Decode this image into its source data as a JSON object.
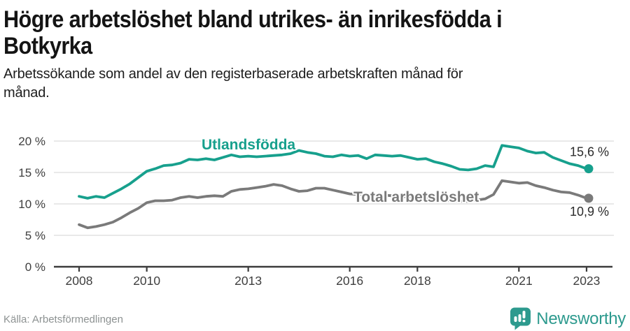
{
  "header": {
    "title": "Högre arbetslöshet bland utrikes- än inrikesfödda i Botkyrka",
    "subtitle": "Arbetssökande som andel av den registerbaserade arbetskraften månad för månad."
  },
  "chart_data": {
    "type": "line",
    "title": "Högre arbetslöshet bland utrikes- än inrikesfödda i Botkyrka",
    "subtitle": "Arbetssökande som andel av den registerbaserade arbetskraften månad för månad.",
    "xlabel": "",
    "ylabel": "",
    "grid": "horizontal",
    "legend_position": "inline-labels",
    "xlim": [
      2007.25,
      2023.8
    ],
    "ylim": [
      0,
      21
    ],
    "yticks": [
      {
        "v": 0,
        "label": "0 %"
      },
      {
        "v": 5,
        "label": "5 %"
      },
      {
        "v": 10,
        "label": "10 %"
      },
      {
        "v": 15,
        "label": "15 %"
      },
      {
        "v": 20,
        "label": "20 %"
      }
    ],
    "xticks": [
      {
        "v": 2008,
        "label": "2008"
      },
      {
        "v": 2010,
        "label": "2010"
      },
      {
        "v": 2013,
        "label": "2013"
      },
      {
        "v": 2016,
        "label": "2016"
      },
      {
        "v": 2018,
        "label": "2018"
      },
      {
        "v": 2021,
        "label": "2021"
      },
      {
        "v": 2023,
        "label": "2023"
      }
    ],
    "series": [
      {
        "name": "Utlandsfödda",
        "color": "#17a08d",
        "end_label": "15,6 %",
        "end_label_position": "above",
        "label_at": [
          2011.62,
          18.67
        ],
        "points": [
          [
            2008.0,
            11.2
          ],
          [
            2008.25,
            10.9
          ],
          [
            2008.5,
            11.2
          ],
          [
            2008.75,
            11.0
          ],
          [
            2009.0,
            11.7
          ],
          [
            2009.25,
            12.4
          ],
          [
            2009.5,
            13.2
          ],
          [
            2009.75,
            14.2
          ],
          [
            2010.0,
            15.2
          ],
          [
            2010.25,
            15.6
          ],
          [
            2010.5,
            16.1
          ],
          [
            2010.75,
            16.2
          ],
          [
            2011.0,
            16.5
          ],
          [
            2011.25,
            17.1
          ],
          [
            2011.5,
            17.0
          ],
          [
            2011.75,
            17.2
          ],
          [
            2012.0,
            17.0
          ],
          [
            2012.25,
            17.4
          ],
          [
            2012.5,
            17.8
          ],
          [
            2012.75,
            17.5
          ],
          [
            2013.0,
            17.6
          ],
          [
            2013.25,
            17.5
          ],
          [
            2013.5,
            17.6
          ],
          [
            2013.75,
            17.7
          ],
          [
            2014.0,
            17.8
          ],
          [
            2014.25,
            18.0
          ],
          [
            2014.5,
            18.5
          ],
          [
            2014.75,
            18.2
          ],
          [
            2015.0,
            18.0
          ],
          [
            2015.25,
            17.6
          ],
          [
            2015.5,
            17.5
          ],
          [
            2015.75,
            17.8
          ],
          [
            2016.0,
            17.6
          ],
          [
            2016.25,
            17.7
          ],
          [
            2016.5,
            17.2
          ],
          [
            2016.75,
            17.8
          ],
          [
            2017.0,
            17.7
          ],
          [
            2017.25,
            17.6
          ],
          [
            2017.5,
            17.7
          ],
          [
            2017.75,
            17.4
          ],
          [
            2018.0,
            17.1
          ],
          [
            2018.25,
            17.2
          ],
          [
            2018.5,
            16.7
          ],
          [
            2018.75,
            16.4
          ],
          [
            2019.0,
            16.0
          ],
          [
            2019.25,
            15.5
          ],
          [
            2019.5,
            15.4
          ],
          [
            2019.75,
            15.6
          ],
          [
            2020.0,
            16.1
          ],
          [
            2020.25,
            15.9
          ],
          [
            2020.5,
            19.3
          ],
          [
            2020.75,
            19.1
          ],
          [
            2021.0,
            18.9
          ],
          [
            2021.25,
            18.4
          ],
          [
            2021.5,
            18.1
          ],
          [
            2021.75,
            18.2
          ],
          [
            2022.0,
            17.4
          ],
          [
            2022.25,
            16.9
          ],
          [
            2022.5,
            16.4
          ],
          [
            2022.75,
            16.1
          ],
          [
            2023.0,
            15.6
          ]
        ]
      },
      {
        "name": "Total arbetslöshet",
        "color": "#7a7a7a",
        "end_label": "10,9 %",
        "end_label_position": "below",
        "label_at": [
          2016.11,
          10.33
        ],
        "points": [
          [
            2008.0,
            6.7
          ],
          [
            2008.25,
            6.2
          ],
          [
            2008.5,
            6.4
          ],
          [
            2008.75,
            6.7
          ],
          [
            2009.0,
            7.1
          ],
          [
            2009.25,
            7.8
          ],
          [
            2009.5,
            8.6
          ],
          [
            2009.75,
            9.3
          ],
          [
            2010.0,
            10.2
          ],
          [
            2010.25,
            10.5
          ],
          [
            2010.5,
            10.5
          ],
          [
            2010.75,
            10.6
          ],
          [
            2011.0,
            11.0
          ],
          [
            2011.25,
            11.2
          ],
          [
            2011.5,
            11.0
          ],
          [
            2011.75,
            11.2
          ],
          [
            2012.0,
            11.3
          ],
          [
            2012.25,
            11.2
          ],
          [
            2012.5,
            12.0
          ],
          [
            2012.75,
            12.3
          ],
          [
            2013.0,
            12.4
          ],
          [
            2013.25,
            12.6
          ],
          [
            2013.5,
            12.8
          ],
          [
            2013.75,
            13.1
          ],
          [
            2014.0,
            12.9
          ],
          [
            2014.25,
            12.4
          ],
          [
            2014.5,
            12.0
          ],
          [
            2014.75,
            12.1
          ],
          [
            2015.0,
            12.5
          ],
          [
            2015.25,
            12.5
          ],
          [
            2015.5,
            12.2
          ],
          [
            2015.75,
            11.9
          ],
          [
            2016.0,
            11.6
          ],
          [
            2016.25,
            11.5
          ],
          [
            2016.5,
            11.5
          ],
          [
            2016.75,
            11.4
          ],
          [
            2017.0,
            11.4
          ],
          [
            2017.25,
            11.3
          ],
          [
            2017.5,
            11.2
          ],
          [
            2017.75,
            11.1
          ],
          [
            2018.0,
            11.0
          ],
          [
            2018.25,
            10.9
          ],
          [
            2018.5,
            10.8
          ],
          [
            2018.75,
            10.6
          ],
          [
            2019.0,
            10.5
          ],
          [
            2019.25,
            10.4
          ],
          [
            2019.5,
            10.4
          ],
          [
            2019.75,
            10.6
          ],
          [
            2020.0,
            10.8
          ],
          [
            2020.25,
            11.5
          ],
          [
            2020.5,
            13.7
          ],
          [
            2020.75,
            13.5
          ],
          [
            2021.0,
            13.3
          ],
          [
            2021.25,
            13.4
          ],
          [
            2021.5,
            12.9
          ],
          [
            2021.75,
            12.6
          ],
          [
            2022.0,
            12.2
          ],
          [
            2022.25,
            11.9
          ],
          [
            2022.5,
            11.8
          ],
          [
            2022.75,
            11.4
          ],
          [
            2023.0,
            10.9
          ]
        ]
      }
    ],
    "source": "Källa: Arbetsförmedlingen"
  },
  "footer": {
    "source": "Källa: Arbetsförmedlingen",
    "logo_text": "Newsworthy"
  },
  "colors": {
    "accent_teal": "#17a08d",
    "series_gray": "#7a7a7a",
    "logo_teal": "#2d9a8e",
    "gridline": "#e2e2e2",
    "axis": "#3c3c3c"
  }
}
